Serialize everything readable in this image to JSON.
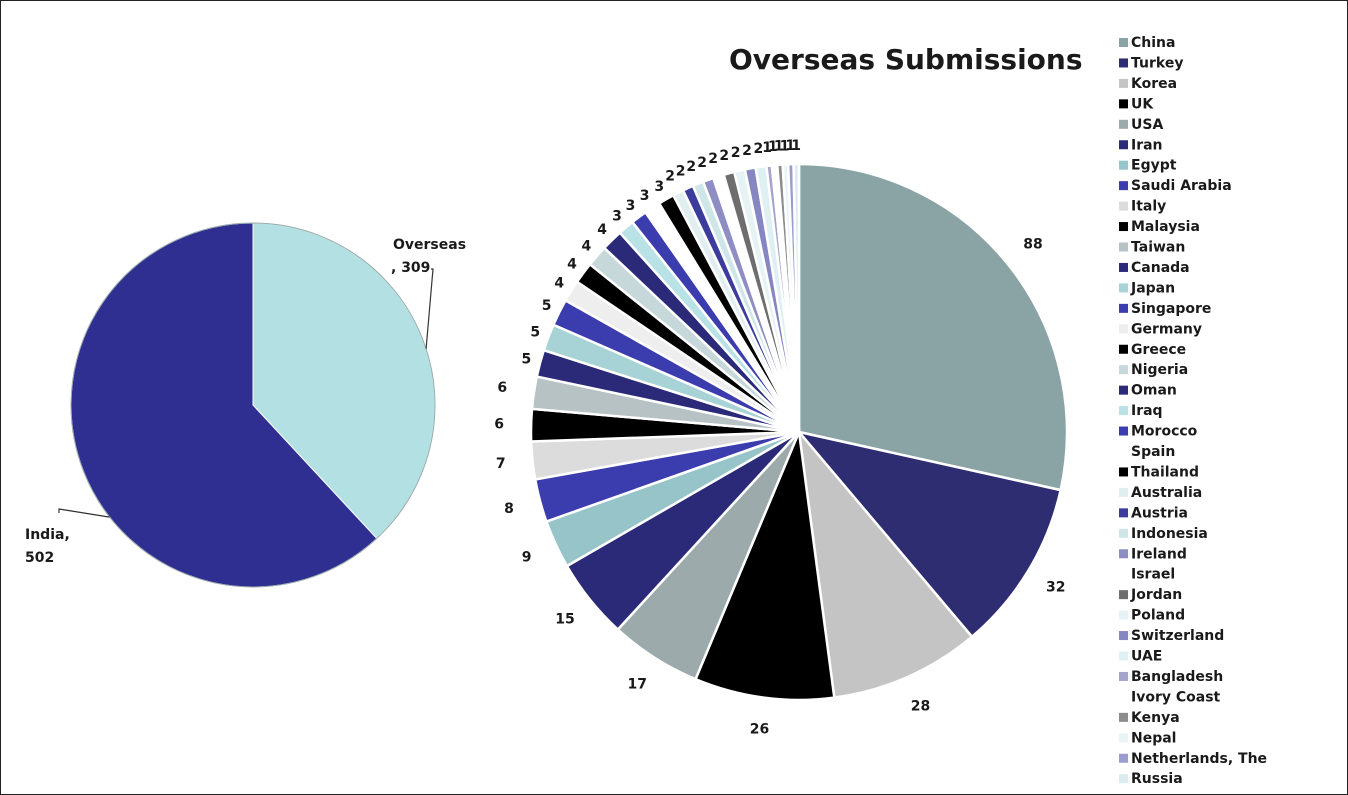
{
  "chart_data": [
    {
      "type": "pie",
      "title": "",
      "slices": [
        {
          "label": "India",
          "value": 502,
          "color": "#2e2f91"
        },
        {
          "label": "Overseas",
          "value": 309,
          "color": "#b3e0e2"
        }
      ]
    },
    {
      "type": "pie",
      "title": "Overseas Submissions",
      "legend": "right",
      "slices": [
        {
          "label": "China",
          "value": 88,
          "color": "#8aa3a5"
        },
        {
          "label": "Turkey",
          "value": 32,
          "color": "#2e2d72"
        },
        {
          "label": "Korea",
          "value": 28,
          "color": "#c4c4c4"
        },
        {
          "label": "UK",
          "value": 26,
          "color": "#000000"
        },
        {
          "label": "USA",
          "value": 17,
          "color": "#9caaac"
        },
        {
          "label": "Iran",
          "value": 15,
          "color": "#2b2a78"
        },
        {
          "label": "Egypt",
          "value": 9,
          "color": "#97c4c8"
        },
        {
          "label": "Saudi Arabia",
          "value": 8,
          "color": "#3b3cad"
        },
        {
          "label": "Italy",
          "value": 7,
          "color": "#dcdcdc"
        },
        {
          "label": "Malaysia",
          "value": 6,
          "color": "#000000"
        },
        {
          "label": "Taiwan",
          "value": 6,
          "color": "#b6c2c3"
        },
        {
          "label": "Canada",
          "value": 5,
          "color": "#2b2a78"
        },
        {
          "label": "Japan",
          "value": 5,
          "color": "#a8d3d6"
        },
        {
          "label": "Singapore",
          "value": 5,
          "color": "#3b3cad"
        },
        {
          "label": "Germany",
          "value": 4,
          "color": "#eeeeee"
        },
        {
          "label": "Greece",
          "value": 4,
          "color": "#000000"
        },
        {
          "label": "Nigeria",
          "value": 4,
          "color": "#c6d8da"
        },
        {
          "label": "Oman",
          "value": 4,
          "color": "#2b2a78"
        },
        {
          "label": "Iraq",
          "value": 3,
          "color": "#b8e2e5"
        },
        {
          "label": "Morocco",
          "value": 3,
          "color": "#3b3cad"
        },
        {
          "label": "Spain",
          "value": 3,
          "color": "#ffffff"
        },
        {
          "label": "Thailand",
          "value": 3,
          "color": "#000000"
        },
        {
          "label": "Australia",
          "value": 2,
          "color": "#e1eef0"
        },
        {
          "label": "Austria",
          "value": 2,
          "color": "#3c3c9c"
        },
        {
          "label": "Indonesia",
          "value": 2,
          "color": "#cfe6e8"
        },
        {
          "label": "Ireland",
          "value": 2,
          "color": "#8e8ec4"
        },
        {
          "label": "Israel",
          "value": 2,
          "color": "#ffffff"
        },
        {
          "label": "Jordan",
          "value": 2,
          "color": "#6e6e6e"
        },
        {
          "label": "Poland",
          "value": 2,
          "color": "#e6f2f3"
        },
        {
          "label": "Switzerland",
          "value": 2,
          "color": "#8686c2"
        },
        {
          "label": "UAE",
          "value": 2,
          "color": "#dff0f2"
        },
        {
          "label": "Bangladesh",
          "value": 1,
          "color": "#a4a4cc"
        },
        {
          "label": "Ivory Coast",
          "value": 1,
          "color": "#ffffff"
        },
        {
          "label": "Kenya",
          "value": 1,
          "color": "#8c8c8c"
        },
        {
          "label": "Nepal",
          "value": 1,
          "color": "#e8f4f5"
        },
        {
          "label": "Netherlands, The",
          "value": 1,
          "color": "#9c9cd0"
        },
        {
          "label": "Russia",
          "value": 1,
          "color": "#dcecee"
        }
      ]
    }
  ]
}
